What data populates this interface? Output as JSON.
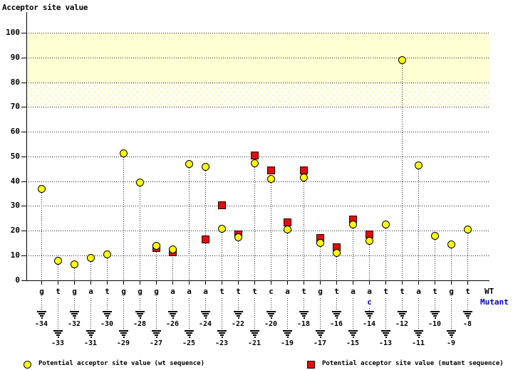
{
  "title": "Acceptor site value",
  "y_axis": {
    "tick_values": [
      100,
      90,
      80,
      70,
      60,
      50,
      40,
      30,
      20,
      10,
      0
    ]
  },
  "sequence_labels": {
    "wt": "WT",
    "mutant": "Mutant"
  },
  "legend": {
    "wt_label": "Potential acceptor site value (wt sequence)",
    "mutant_label": "Potential acceptor site value (mutant sequence)"
  },
  "colors": {
    "wt_marker": "#ffff00",
    "mutant_marker": "#dd0f0f",
    "band_solid": "#ffffd4",
    "mutant_text": "#0000cc",
    "axis": "#000000",
    "grid_dots": "#222222"
  },
  "chart_data": {
    "type": "scatter",
    "title": "Acceptor site value",
    "ylabel": "Acceptor site value",
    "ylim": [
      0,
      107
    ],
    "grid": "dotted horizontal line every 10 units",
    "legend_position": "bottom",
    "highlight_bands": [
      {
        "range": [
          80,
          100
        ],
        "style": "solid pale yellow"
      },
      {
        "range": [
          70,
          80
        ],
        "style": "crosshatched pale yellow"
      }
    ],
    "series_names": [
      "wt",
      "mutant"
    ],
    "points": [
      {
        "pos": -34,
        "base": "g",
        "wt": 37,
        "mutant": null
      },
      {
        "pos": -33,
        "base": "t",
        "wt": 8,
        "mutant": null
      },
      {
        "pos": -32,
        "base": "g",
        "wt": 6.5,
        "mutant": null
      },
      {
        "pos": -31,
        "base": "a",
        "wt": 9,
        "mutant": null
      },
      {
        "pos": -30,
        "base": "t",
        "wt": 10.5,
        "mutant": null
      },
      {
        "pos": -29,
        "base": "g",
        "wt": 51.5,
        "mutant": null
      },
      {
        "pos": -28,
        "base": "g",
        "wt": 39.5,
        "mutant": null
      },
      {
        "pos": -27,
        "base": "g",
        "wt": 14,
        "mutant": 13
      },
      {
        "pos": -26,
        "base": "a",
        "wt": 12.5,
        "mutant": 11.5
      },
      {
        "pos": -25,
        "base": "a",
        "wt": 47,
        "mutant": null
      },
      {
        "pos": -24,
        "base": "a",
        "wt": 46,
        "mutant": 16.5
      },
      {
        "pos": -23,
        "base": "t",
        "wt": 21,
        "mutant": 30.5
      },
      {
        "pos": -22,
        "base": "t",
        "wt": 17.5,
        "mutant": 18.5
      },
      {
        "pos": -21,
        "base": "t",
        "wt": 47.5,
        "mutant": 50.5
      },
      {
        "pos": -20,
        "base": "c",
        "wt": 41,
        "mutant": 44.5
      },
      {
        "pos": -19,
        "base": "a",
        "wt": 20.5,
        "mutant": 23.5
      },
      {
        "pos": -18,
        "base": "t",
        "wt": 41.5,
        "mutant": 44.5
      },
      {
        "pos": -17,
        "base": "g",
        "wt": 15,
        "mutant": 17
      },
      {
        "pos": -16,
        "base": "t",
        "wt": 11,
        "mutant": 13.5
      },
      {
        "pos": -15,
        "base": "a",
        "wt": 22.5,
        "mutant": 24.5
      },
      {
        "pos": -14,
        "base": "a",
        "mutant_base": "c",
        "wt": 16,
        "mutant": 18.5
      },
      {
        "pos": -13,
        "base": "t",
        "wt": 22.5,
        "mutant": null
      },
      {
        "pos": -12,
        "base": "t",
        "wt": 89,
        "mutant": null
      },
      {
        "pos": -11,
        "base": "a",
        "wt": 46.5,
        "mutant": null
      },
      {
        "pos": -10,
        "base": "t",
        "wt": 18,
        "mutant": null
      },
      {
        "pos": -9,
        "base": "g",
        "wt": 14.5,
        "mutant": null
      },
      {
        "pos": -8,
        "base": "t",
        "wt": 20.5,
        "mutant": null
      }
    ]
  }
}
